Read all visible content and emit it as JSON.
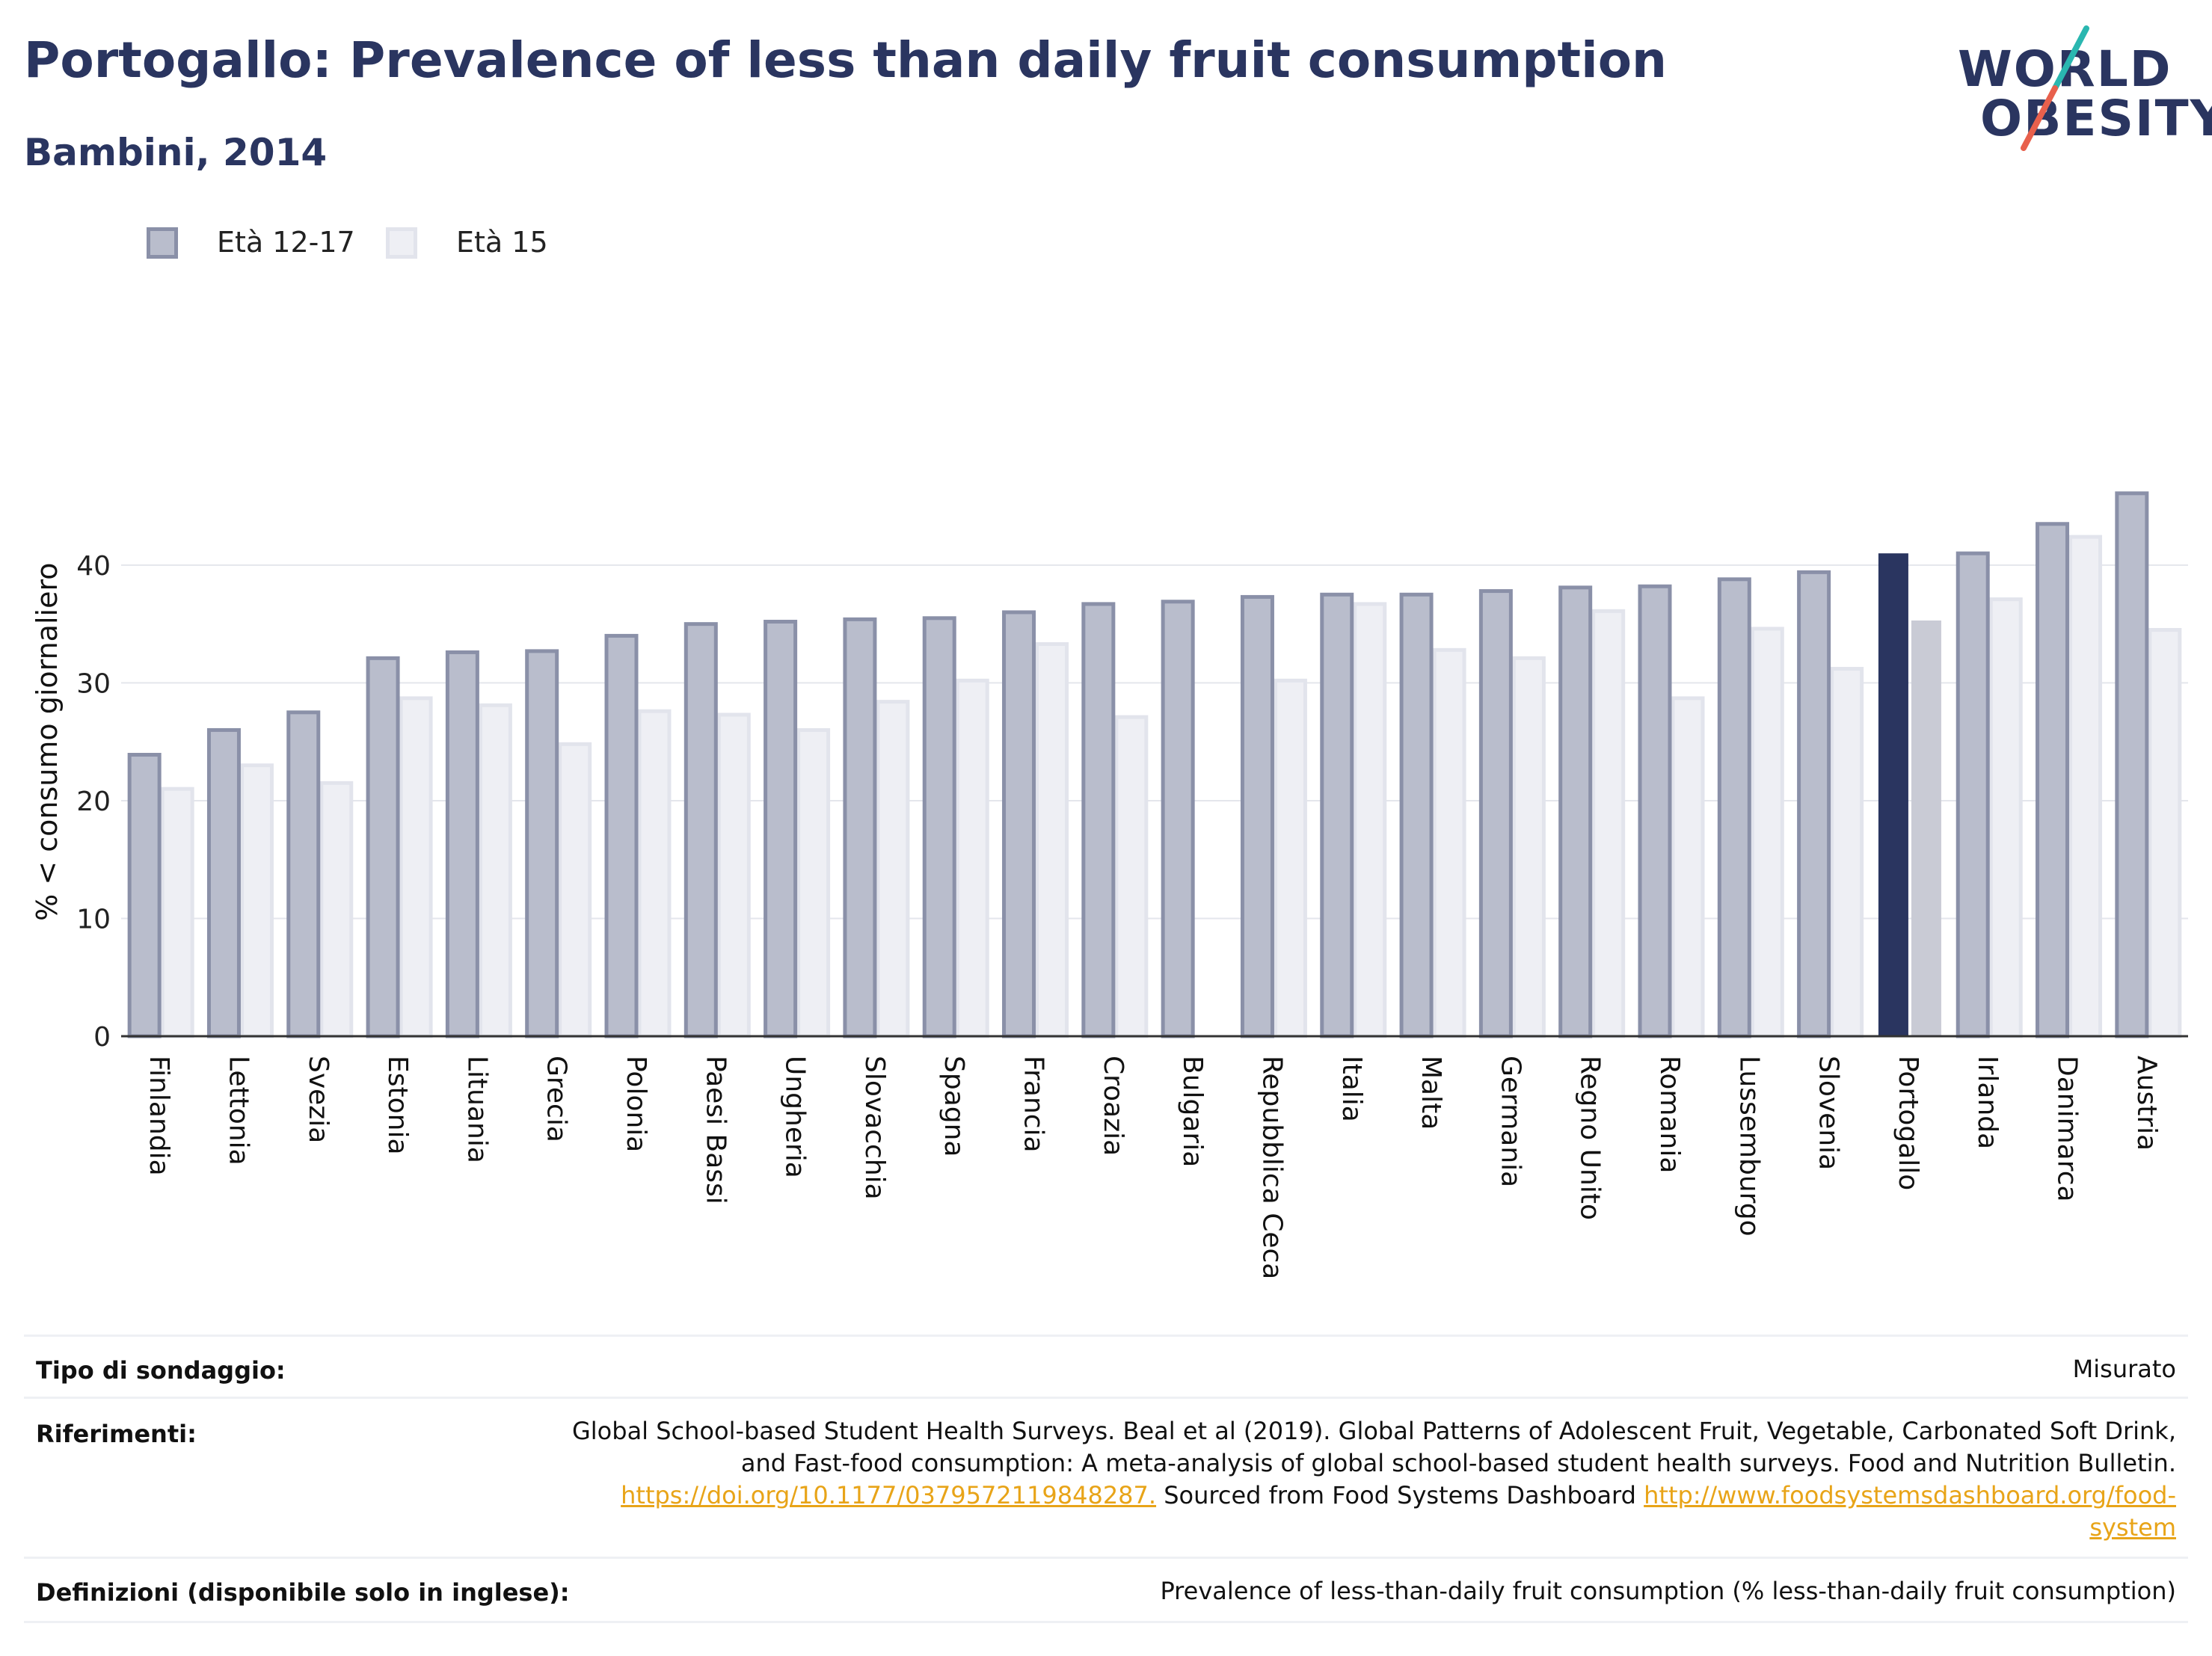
{
  "header": {
    "title": "Portogallo: Prevalence of less than daily fruit consumption",
    "subtitle": "Bambini, 2014"
  },
  "logo": {
    "line1": "WORLD",
    "line2": "OBESITY",
    "accent_colors": [
      "#2ab7b0",
      "#e8604c"
    ]
  },
  "legend": [
    {
      "label": "Età 12-17",
      "color": "#b9bdcc",
      "border": "#8a90a8"
    },
    {
      "label": "Età 15",
      "color": "#eeeff4",
      "border": "#e2e4ec"
    }
  ],
  "chart_data": {
    "type": "bar",
    "ylabel": "% < consumo giornaliero",
    "ylim": [
      0,
      50
    ],
    "yticks": [
      0,
      10,
      20,
      30,
      40
    ],
    "grid": true,
    "highlight": "Portogallo",
    "highlight_colors": [
      "#2a3560",
      "#c9cbd5"
    ],
    "categories": [
      "Finlandia",
      "Lettonia",
      "Svezia",
      "Estonia",
      "Lituania",
      "Grecia",
      "Polonia",
      "Paesi Bassi",
      "Ungheria",
      "Slovacchia",
      "Spagna",
      "Francia",
      "Croazia",
      "Bulgaria",
      "Repubblica Ceca",
      "Italia",
      "Malta",
      "Germania",
      "Regno Unito",
      "Romania",
      "Lussemburgo",
      "Slovenia",
      "Portogallo",
      "Irlanda",
      "Danimarca",
      "Austria"
    ],
    "series": [
      {
        "name": "Età 12-17",
        "values": [
          23.9,
          26.0,
          27.5,
          32.1,
          32.6,
          32.7,
          34.0,
          35.0,
          35.2,
          35.4,
          35.5,
          36.0,
          36.7,
          36.9,
          37.3,
          37.5,
          37.5,
          37.8,
          38.1,
          38.2,
          38.8,
          39.4,
          41.0,
          41.0,
          43.5,
          46.1
        ]
      },
      {
        "name": "Età 15",
        "values": [
          21.0,
          23.0,
          21.5,
          28.7,
          28.1,
          24.8,
          27.6,
          27.3,
          26.0,
          28.4,
          30.2,
          33.3,
          27.1,
          null,
          30.2,
          36.7,
          32.8,
          32.1,
          36.1,
          28.7,
          34.6,
          31.2,
          35.3,
          37.1,
          42.4,
          34.5
        ]
      }
    ]
  },
  "meta": {
    "survey_type": {
      "key": "Tipo di sondaggio:",
      "value": "Misurato"
    },
    "references": {
      "key": "Riferimenti:",
      "line1": "Global School-based Student Health Surveys. Beal et al (2019). Global Patterns of Adolescent Fruit, Vegetable, Carbonated Soft Drink,",
      "line2": "and Fast-food consumption: A meta-analysis of global school-based student health surveys. Food and Nutrition Bulletin.",
      "link1": "https://doi.org/10.1177/0379572119848287.",
      "mid_text": " Sourced from Food Systems Dashboard ",
      "link2a": "http://www.foodsystemsdashboard.org/food-",
      "link2b": "system"
    },
    "definitions": {
      "key": "Definizioni (disponibile solo in inglese):",
      "value": "Prevalence of less-than-daily fruit consumption (% less-than-daily fruit consumption)"
    }
  }
}
